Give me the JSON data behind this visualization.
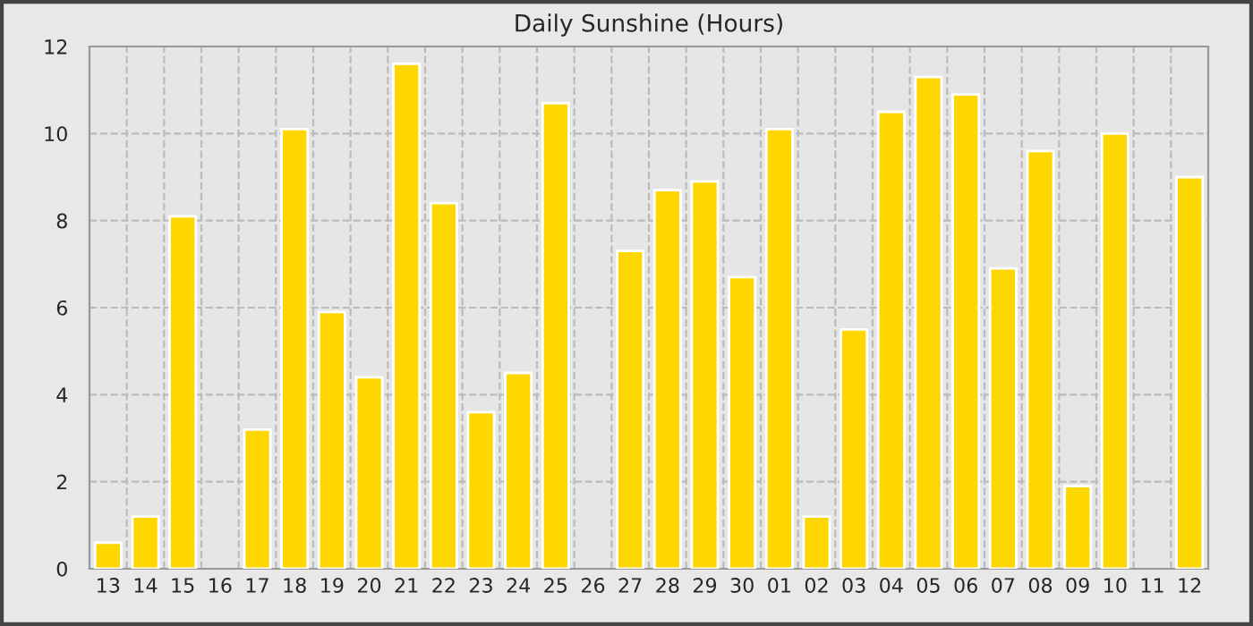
{
  "chart_data": {
    "type": "bar",
    "title": "Daily Sunshine (Hours)",
    "categories": [
      "13",
      "14",
      "15",
      "16",
      "17",
      "18",
      "19",
      "20",
      "21",
      "22",
      "23",
      "24",
      "25",
      "26",
      "27",
      "28",
      "29",
      "30",
      "01",
      "02",
      "03",
      "04",
      "05",
      "06",
      "07",
      "08",
      "09",
      "10",
      "11",
      "12"
    ],
    "values": [
      0.6,
      1.2,
      8.1,
      0,
      3.2,
      10.1,
      5.9,
      4.4,
      11.6,
      8.4,
      3.6,
      4.5,
      10.7,
      0,
      7.3,
      8.7,
      8.9,
      6.7,
      10.1,
      1.2,
      5.5,
      10.5,
      11.3,
      10.9,
      6.9,
      9.6,
      1.9,
      10.0,
      0,
      9.0
    ],
    "color": "#ffd700",
    "ylim": [
      0,
      12
    ],
    "yticks": [
      0,
      2,
      4,
      6,
      8,
      10,
      12
    ],
    "grid": true
  }
}
